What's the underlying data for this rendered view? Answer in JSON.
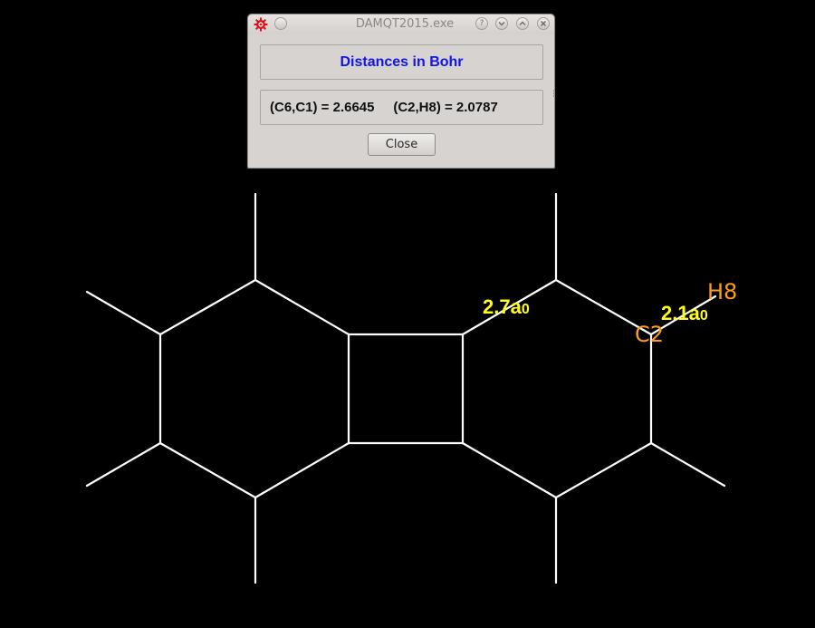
{
  "window": {
    "title": "DAMQT2015.exe",
    "app_icon": "gear-icon",
    "buttons": {
      "pin": "circle-button-icon",
      "help": "?",
      "minimize": "chevron-down-icon",
      "maximize": "chevron-up-icon",
      "close": "close-icon"
    }
  },
  "dialog": {
    "header": "Distances in Bohr",
    "values": "(C6,C1) = 2.6645     (C2,H8) = 2.0787",
    "close_label": "Close"
  },
  "molecule": {
    "atom_labels": {
      "c2": "C2",
      "h8": "H8"
    },
    "distance_labels": {
      "d1_value": "2.7",
      "d1_unit": "a",
      "d1_sub": "0",
      "d2_value": "2.1",
      "d2_unit": "a",
      "d2_sub": "0"
    }
  },
  "colors": {
    "background": "#000000",
    "bonds": "#ffffff",
    "atom_label": "#ff9c1a",
    "distance_label": "#ffff1a",
    "dialog_header": "#1414e6"
  }
}
